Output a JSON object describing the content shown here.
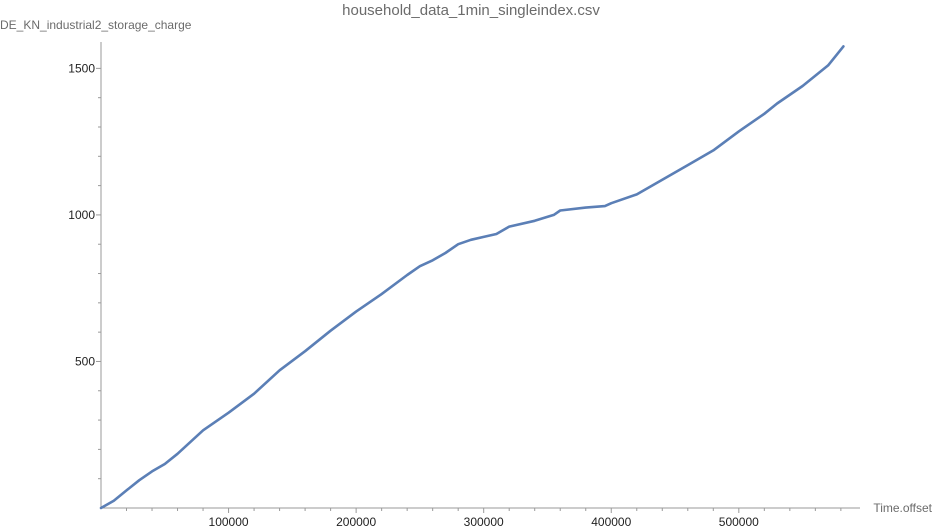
{
  "chart_data": {
    "type": "line",
    "title": "household_data_1min_singleindex.csv",
    "xlabel": "Time.offset",
    "ylabel": "DE_KN_industrial2_storage_charge",
    "xlim": [
      0,
      595000
    ],
    "ylim": [
      0,
      1590
    ],
    "x_ticks": [
      100000,
      200000,
      300000,
      400000,
      500000
    ],
    "x_tick_labels": [
      "100000",
      "200000",
      "300000",
      "400000",
      "500000"
    ],
    "y_ticks": [
      500,
      1000,
      1500
    ],
    "y_tick_labels": [
      "500",
      "1000",
      "1500"
    ],
    "grid": false,
    "series": [
      {
        "color": "#5b7fb6",
        "x": [
          0,
          10000,
          20000,
          30000,
          40000,
          50000,
          60000,
          80000,
          100000,
          120000,
          140000,
          160000,
          180000,
          200000,
          220000,
          240000,
          250000,
          260000,
          270000,
          280000,
          290000,
          300000,
          310000,
          320000,
          340000,
          355000,
          360000,
          380000,
          395000,
          400000,
          420000,
          440000,
          460000,
          480000,
          500000,
          520000,
          530000,
          550000,
          570000,
          582000
        ],
        "y": [
          0,
          25,
          60,
          95,
          125,
          150,
          185,
          265,
          325,
          390,
          470,
          535,
          605,
          670,
          730,
          795,
          825,
          845,
          870,
          900,
          915,
          925,
          935,
          960,
          980,
          1000,
          1015,
          1025,
          1030,
          1040,
          1070,
          1120,
          1170,
          1220,
          1285,
          1345,
          1380,
          1440,
          1510,
          1575
        ]
      }
    ]
  }
}
